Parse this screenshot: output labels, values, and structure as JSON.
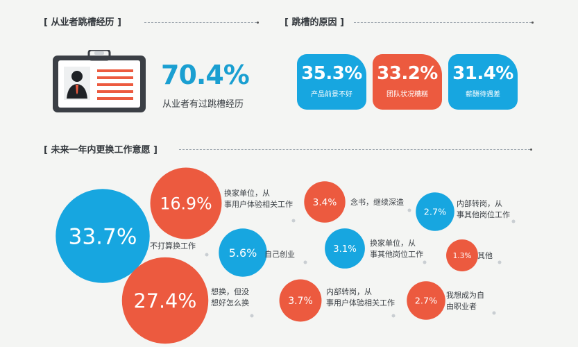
{
  "sections": {
    "history": "[ 从业者跳槽经历 ]",
    "reasons": "[ 跳槽的原因 ]",
    "future": "[ 未来一年内更换工作意愿 ]"
  },
  "history_stat": {
    "value": "70.4%",
    "label": "从业者有过跳槽经历"
  },
  "reason_cards": [
    {
      "value": "35.3%",
      "label": "产品前景不好",
      "color": "#17a6e0"
    },
    {
      "value": "33.2%",
      "label": "团队状况糟糕",
      "color": "#ec5a3f"
    },
    {
      "value": "31.4%",
      "label": "薪酬待遇差",
      "color": "#17a6e0"
    }
  ],
  "colors": {
    "blue": "#17a6e0",
    "red": "#ec5a3f",
    "accent_text": "#1a9fd1"
  },
  "chart_data": {
    "type": "bubble",
    "title": "[ 未来一年内更换工作意愿 ]",
    "items": [
      {
        "label": "不打算换工作",
        "value": 33.7,
        "display": "33.7%",
        "color": "#17a6e0"
      },
      {
        "label": "想换，但没想好怎么换",
        "value": 27.4,
        "display": "27.4%",
        "color": "#ec5a3f"
      },
      {
        "label": "换家单位，从事用户体验相关工作",
        "value": 16.9,
        "display": "16.9%",
        "color": "#ec5a3f"
      },
      {
        "label": "自己创业",
        "value": 5.6,
        "display": "5.6%",
        "color": "#17a6e0"
      },
      {
        "label": "内部转岗，从事用户体验相关工作",
        "value": 3.7,
        "display": "3.7%",
        "color": "#ec5a3f"
      },
      {
        "label": "念书，继续深造",
        "value": 3.4,
        "display": "3.4%",
        "color": "#ec5a3f"
      },
      {
        "label": "换家单位，从事其他岗位工作",
        "value": 3.1,
        "display": "3.1%",
        "color": "#17a6e0"
      },
      {
        "label": "内部转岗，从事其他岗位工作",
        "value": 2.7,
        "display": "2.7%",
        "color": "#17a6e0"
      },
      {
        "label": "我想成为自由职业者",
        "value": 2.7,
        "display": "2.7%",
        "color": "#ec5a3f"
      },
      {
        "label": "其他",
        "value": 1.3,
        "display": "1.3%",
        "color": "#ec5a3f"
      }
    ]
  }
}
